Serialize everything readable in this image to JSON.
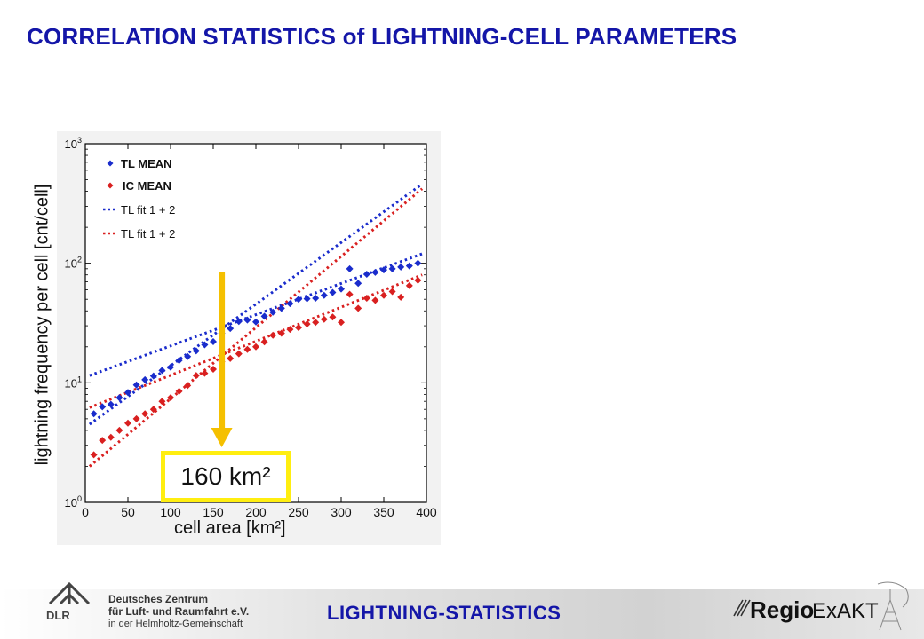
{
  "slide_title": "CORRELATION STATISTICS of LIGHTNING-CELL PARAMETERS",
  "footer_title": "LIGHTNING-STATISTICS",
  "institution": {
    "line1": "Deutsches Zentrum",
    "line2": "für Luft- und Raumfahrt e.V.",
    "line3": "in der Helmholtz-Gemeinschaft",
    "logo_text": "DLR"
  },
  "project_logo": {
    "part1": "Regio",
    "part2": "ExAKT"
  },
  "callout_label": "160 km²",
  "chart_data": {
    "type": "scatter",
    "xlabel": "cell area [km²]",
    "ylabel": "lightning frequency per cell [cnt/cell]",
    "xlim": [
      0,
      400
    ],
    "ylim_log": [
      1,
      1000
    ],
    "y_scale": "log",
    "x_ticks": [
      "0",
      "50",
      "100",
      "150",
      "200",
      "250",
      "300",
      "350",
      "400"
    ],
    "y_ticks": [
      {
        "base": "10",
        "exp": "0"
      },
      {
        "base": "10",
        "exp": "1"
      },
      {
        "base": "10",
        "exp": "2"
      },
      {
        "base": "10",
        "exp": "3"
      }
    ],
    "legend_position": "top-left",
    "legend": [
      {
        "label": "TL MEAN",
        "color": "#1a2ccc",
        "style": "marker"
      },
      {
        "label": "IC MEAN",
        "color": "#d92020",
        "style": "marker"
      },
      {
        "label": "TL fit 1 + 2",
        "color": "#1a2ccc",
        "style": "dotted"
      },
      {
        "label": "TL fit 1 + 2",
        "color": "#d92020",
        "style": "dotted"
      }
    ],
    "series": [
      {
        "name": "TL MEAN",
        "color": "#1a2ccc",
        "marker": "diamond",
        "x": [
          10,
          20,
          30,
          40,
          50,
          60,
          70,
          80,
          90,
          100,
          110,
          120,
          130,
          140,
          150,
          160,
          170,
          180,
          190,
          200,
          210,
          220,
          230,
          240,
          250,
          260,
          270,
          280,
          290,
          300,
          310,
          320,
          330,
          340,
          350,
          360,
          370,
          380,
          390
        ],
        "y": [
          5.5,
          6.3,
          6.6,
          7.5,
          8.3,
          9.6,
          10.6,
          11.4,
          12.7,
          13.5,
          15.4,
          16.6,
          18.5,
          20.8,
          22.1,
          26,
          28.5,
          32.6,
          33.5,
          32.3,
          36,
          39,
          42,
          46,
          50,
          50.5,
          51,
          54,
          57,
          61,
          90,
          68,
          81,
          84,
          88,
          90,
          93,
          95,
          100
        ]
      },
      {
        "name": "IC MEAN",
        "color": "#d92020",
        "marker": "diamond",
        "x": [
          10,
          20,
          30,
          40,
          50,
          60,
          70,
          80,
          90,
          100,
          110,
          120,
          130,
          140,
          150,
          160,
          170,
          180,
          190,
          200,
          210,
          220,
          230,
          240,
          250,
          260,
          270,
          280,
          290,
          300,
          310,
          320,
          330,
          340,
          350,
          360,
          370,
          380,
          390
        ],
        "y": [
          2.5,
          3.3,
          3.5,
          4,
          4.6,
          5,
          5.5,
          6,
          7,
          7.5,
          8.5,
          9.5,
          11.5,
          12,
          13,
          15,
          16,
          17.5,
          19,
          20,
          22,
          25,
          26,
          28,
          29,
          31,
          32,
          34,
          35.5,
          32,
          55,
          42,
          51,
          49,
          54,
          58,
          52,
          65,
          72
        ]
      },
      {
        "name": "TL fit 1 + 2",
        "color": "#1a2ccc",
        "style": "dotted",
        "x": [
          5,
          395
        ],
        "y": [
          4.5,
          460
        ]
      },
      {
        "name": "",
        "color": "#1a2ccc",
        "style": "dotted",
        "x": [
          5,
          395
        ],
        "y": [
          11.5,
          120
        ]
      },
      {
        "name": "TL fit 1 + 2",
        "color": "#d92020",
        "style": "dotted",
        "x": [
          5,
          395
        ],
        "y": [
          2,
          420
        ]
      },
      {
        "name": "",
        "color": "#d92020",
        "style": "dotted",
        "x": [
          5,
          395
        ],
        "y": [
          6.2,
          80
        ]
      }
    ],
    "annotation": {
      "label": "160 km²",
      "x": 160,
      "arrow_color": "#f5c000",
      "box_color": "#ffee10"
    }
  }
}
